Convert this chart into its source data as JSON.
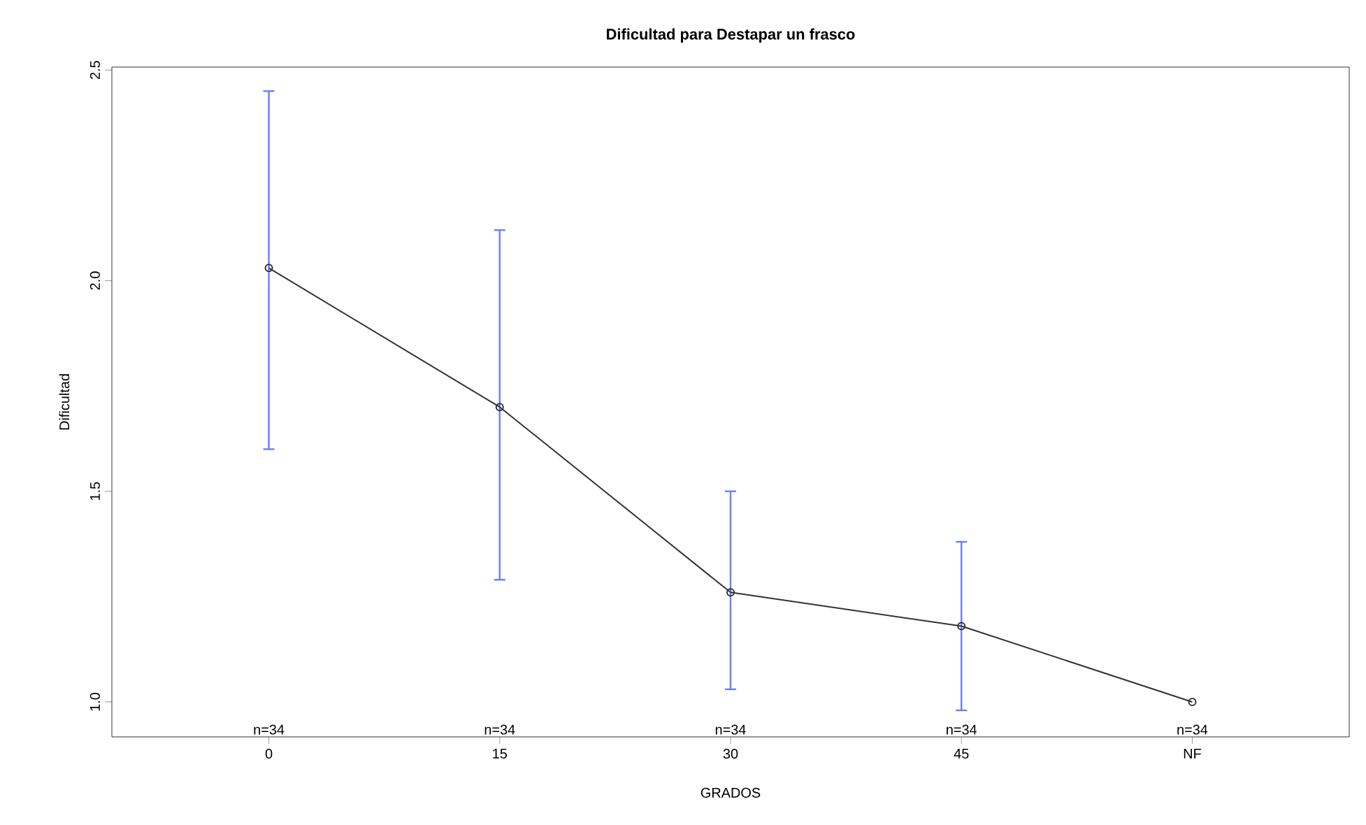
{
  "chart_data": {
    "type": "line",
    "title": "Dificultad para Destapar un frasco",
    "xlabel": "GRADOS",
    "ylabel": "Dificultad",
    "categories": [
      "0",
      "15",
      "30",
      "45",
      "NF"
    ],
    "series": [
      {
        "color": "#333333",
        "values": [
          2.03,
          1.7,
          1.26,
          1.18,
          1.0
        ],
        "errors": [
          [
            1.6,
            2.45
          ],
          [
            1.29,
            2.12
          ],
          [
            1.03,
            1.5
          ],
          [
            0.98,
            1.38
          ],
          null
        ]
      }
    ],
    "ylim": [
      0.917,
      2.507
    ],
    "yticks": [
      {
        "value": 1,
        "label": "1.0"
      },
      {
        "value": 1.5,
        "label": "1.5"
      },
      {
        "value": 2,
        "label": "2.0"
      },
      {
        "value": 2.5,
        "label": "2.5"
      }
    ],
    "marker": "circle",
    "line_style": "solid",
    "annotations": [
      "n=34",
      "n=34",
      "n=34",
      "n=34",
      "n=34"
    ]
  }
}
